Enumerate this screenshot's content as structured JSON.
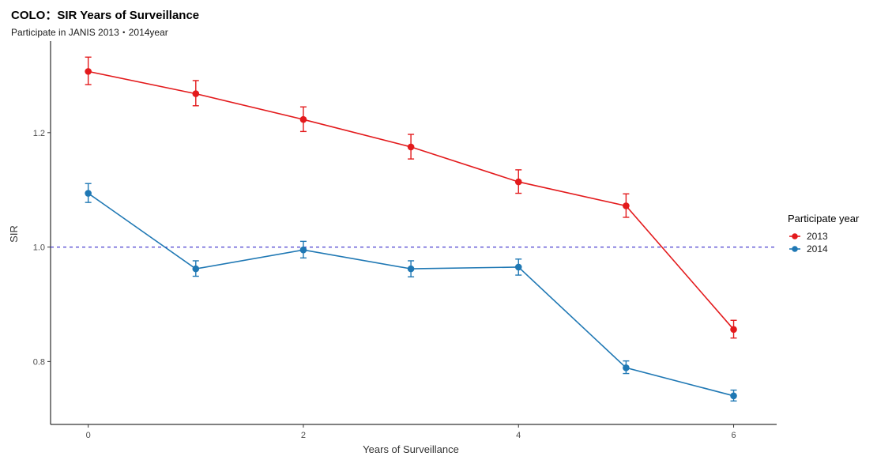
{
  "chart_data": {
    "type": "line",
    "title": "COLO：SIR Years of Surveillance",
    "subtitle": "Participate in JANIS 2013・2014year",
    "xlabel": "Years of Surveillance",
    "ylabel": "SIR",
    "xlim": [
      -0.35,
      6.4
    ],
    "ylim": [
      0.69,
      1.36
    ],
    "x_ticks": [
      0,
      2,
      4,
      6
    ],
    "x_tick_labels": [
      "0",
      "2",
      "4",
      "6"
    ],
    "y_ticks": [
      0.8,
      1.0,
      1.2
    ],
    "y_tick_labels": [
      "0.8",
      "1.0",
      "1.2"
    ],
    "reference_line": {
      "y": 1.0,
      "style": "dashed",
      "color": "#4a3fd0"
    },
    "grid": false,
    "legend": {
      "title": "Participate year",
      "position": "right"
    },
    "series": [
      {
        "name": "2013",
        "color": "#e31a1c",
        "x": [
          0,
          1,
          2,
          3,
          4,
          5,
          6
        ],
        "values": [
          1.307,
          1.268,
          1.223,
          1.175,
          1.114,
          1.072,
          0.856
        ],
        "lower": [
          1.284,
          1.247,
          1.202,
          1.154,
          1.094,
          1.052,
          0.841
        ],
        "upper": [
          1.332,
          1.291,
          1.245,
          1.197,
          1.135,
          1.093,
          0.872
        ]
      },
      {
        "name": "2014",
        "color": "#1f78b4",
        "x": [
          0,
          1,
          2,
          3,
          4,
          5,
          6
        ],
        "values": [
          1.094,
          0.962,
          0.995,
          0.962,
          0.965,
          0.789,
          0.74
        ],
        "lower": [
          1.078,
          0.949,
          0.981,
          0.948,
          0.951,
          0.779,
          0.731
        ],
        "upper": [
          1.111,
          0.976,
          1.01,
          0.976,
          0.979,
          0.801,
          0.75
        ]
      }
    ]
  }
}
